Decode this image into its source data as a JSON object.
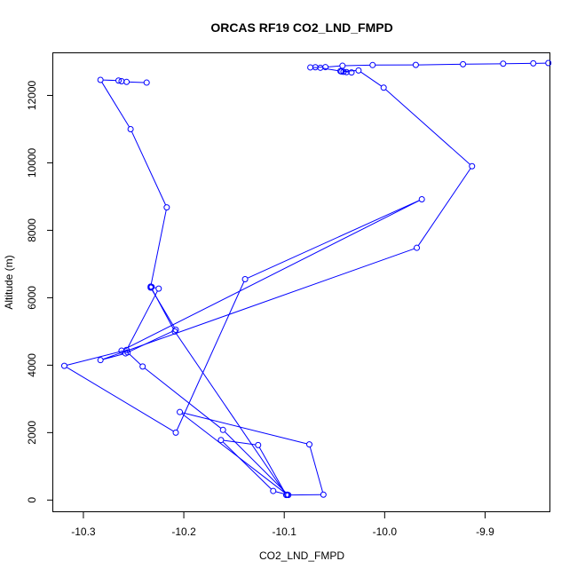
{
  "chart_data": {
    "type": "line",
    "title": "ORCAS RF19 CO2_LND_FMPD",
    "xlabel": "CO2_LND_FMPD",
    "ylabel": "Altitude (m)",
    "xlim": [
      -10.33,
      -9.835
    ],
    "ylim": [
      -360,
      13250
    ],
    "xticks": [
      -10.3,
      -10.2,
      -10.1,
      -10.0,
      -9.9
    ],
    "xtick_labels": [
      "-10.3",
      "-10.2",
      "-10.1",
      "-10.0",
      "-9.9"
    ],
    "yticks": [
      0,
      2000,
      4000,
      6000,
      8000,
      10000,
      12000
    ],
    "ytick_labels": [
      "0",
      "2000",
      "4000",
      "6000",
      "8000",
      "10000",
      "12000"
    ],
    "colors": {
      "series": "#0000ff",
      "axes": "#000000"
    },
    "series": [
      {
        "x": [
          -9.837,
          -9.852,
          -9.882,
          -9.922,
          -9.969,
          -10.012,
          -10.042,
          -10.059,
          -10.069,
          -10.074,
          -10.064,
          -10.044,
          -10.033,
          -10.038,
          -10.041,
          -10.043,
          -10.026,
          -10.001,
          -9.913,
          -9.968,
          -10.283,
          -10.258,
          -10.208,
          -10.233,
          -10.232,
          -10.225,
          -10.257,
          -10.319,
          -10.208,
          -10.139,
          -9.963,
          -10.262,
          -10.256,
          -10.241,
          -10.161,
          -10.096,
          -10.061,
          -10.075,
          -10.204,
          -10.097,
          -10.111,
          -10.163,
          -10.126,
          -10.098,
          -10.209,
          -10.233,
          -10.217,
          -10.253,
          -10.283,
          -10.265,
          -10.262,
          -10.257,
          -10.237
        ],
        "y": [
          12960,
          12950,
          12940,
          12925,
          12905,
          12900,
          12880,
          12840,
          12835,
          12830,
          12820,
          12720,
          12680,
          12690,
          12700,
          12710,
          12740,
          12230,
          9900,
          7480,
          4150,
          4350,
          5050,
          6300,
          6320,
          6270,
          4450,
          3980,
          2000,
          6550,
          8920,
          4430,
          4380,
          3960,
          2080,
          150,
          160,
          1650,
          2610,
          160,
          270,
          1780,
          1630,
          150,
          5000,
          6330,
          8680,
          11000,
          12460,
          12440,
          12420,
          12400,
          12380
        ]
      }
    ]
  }
}
